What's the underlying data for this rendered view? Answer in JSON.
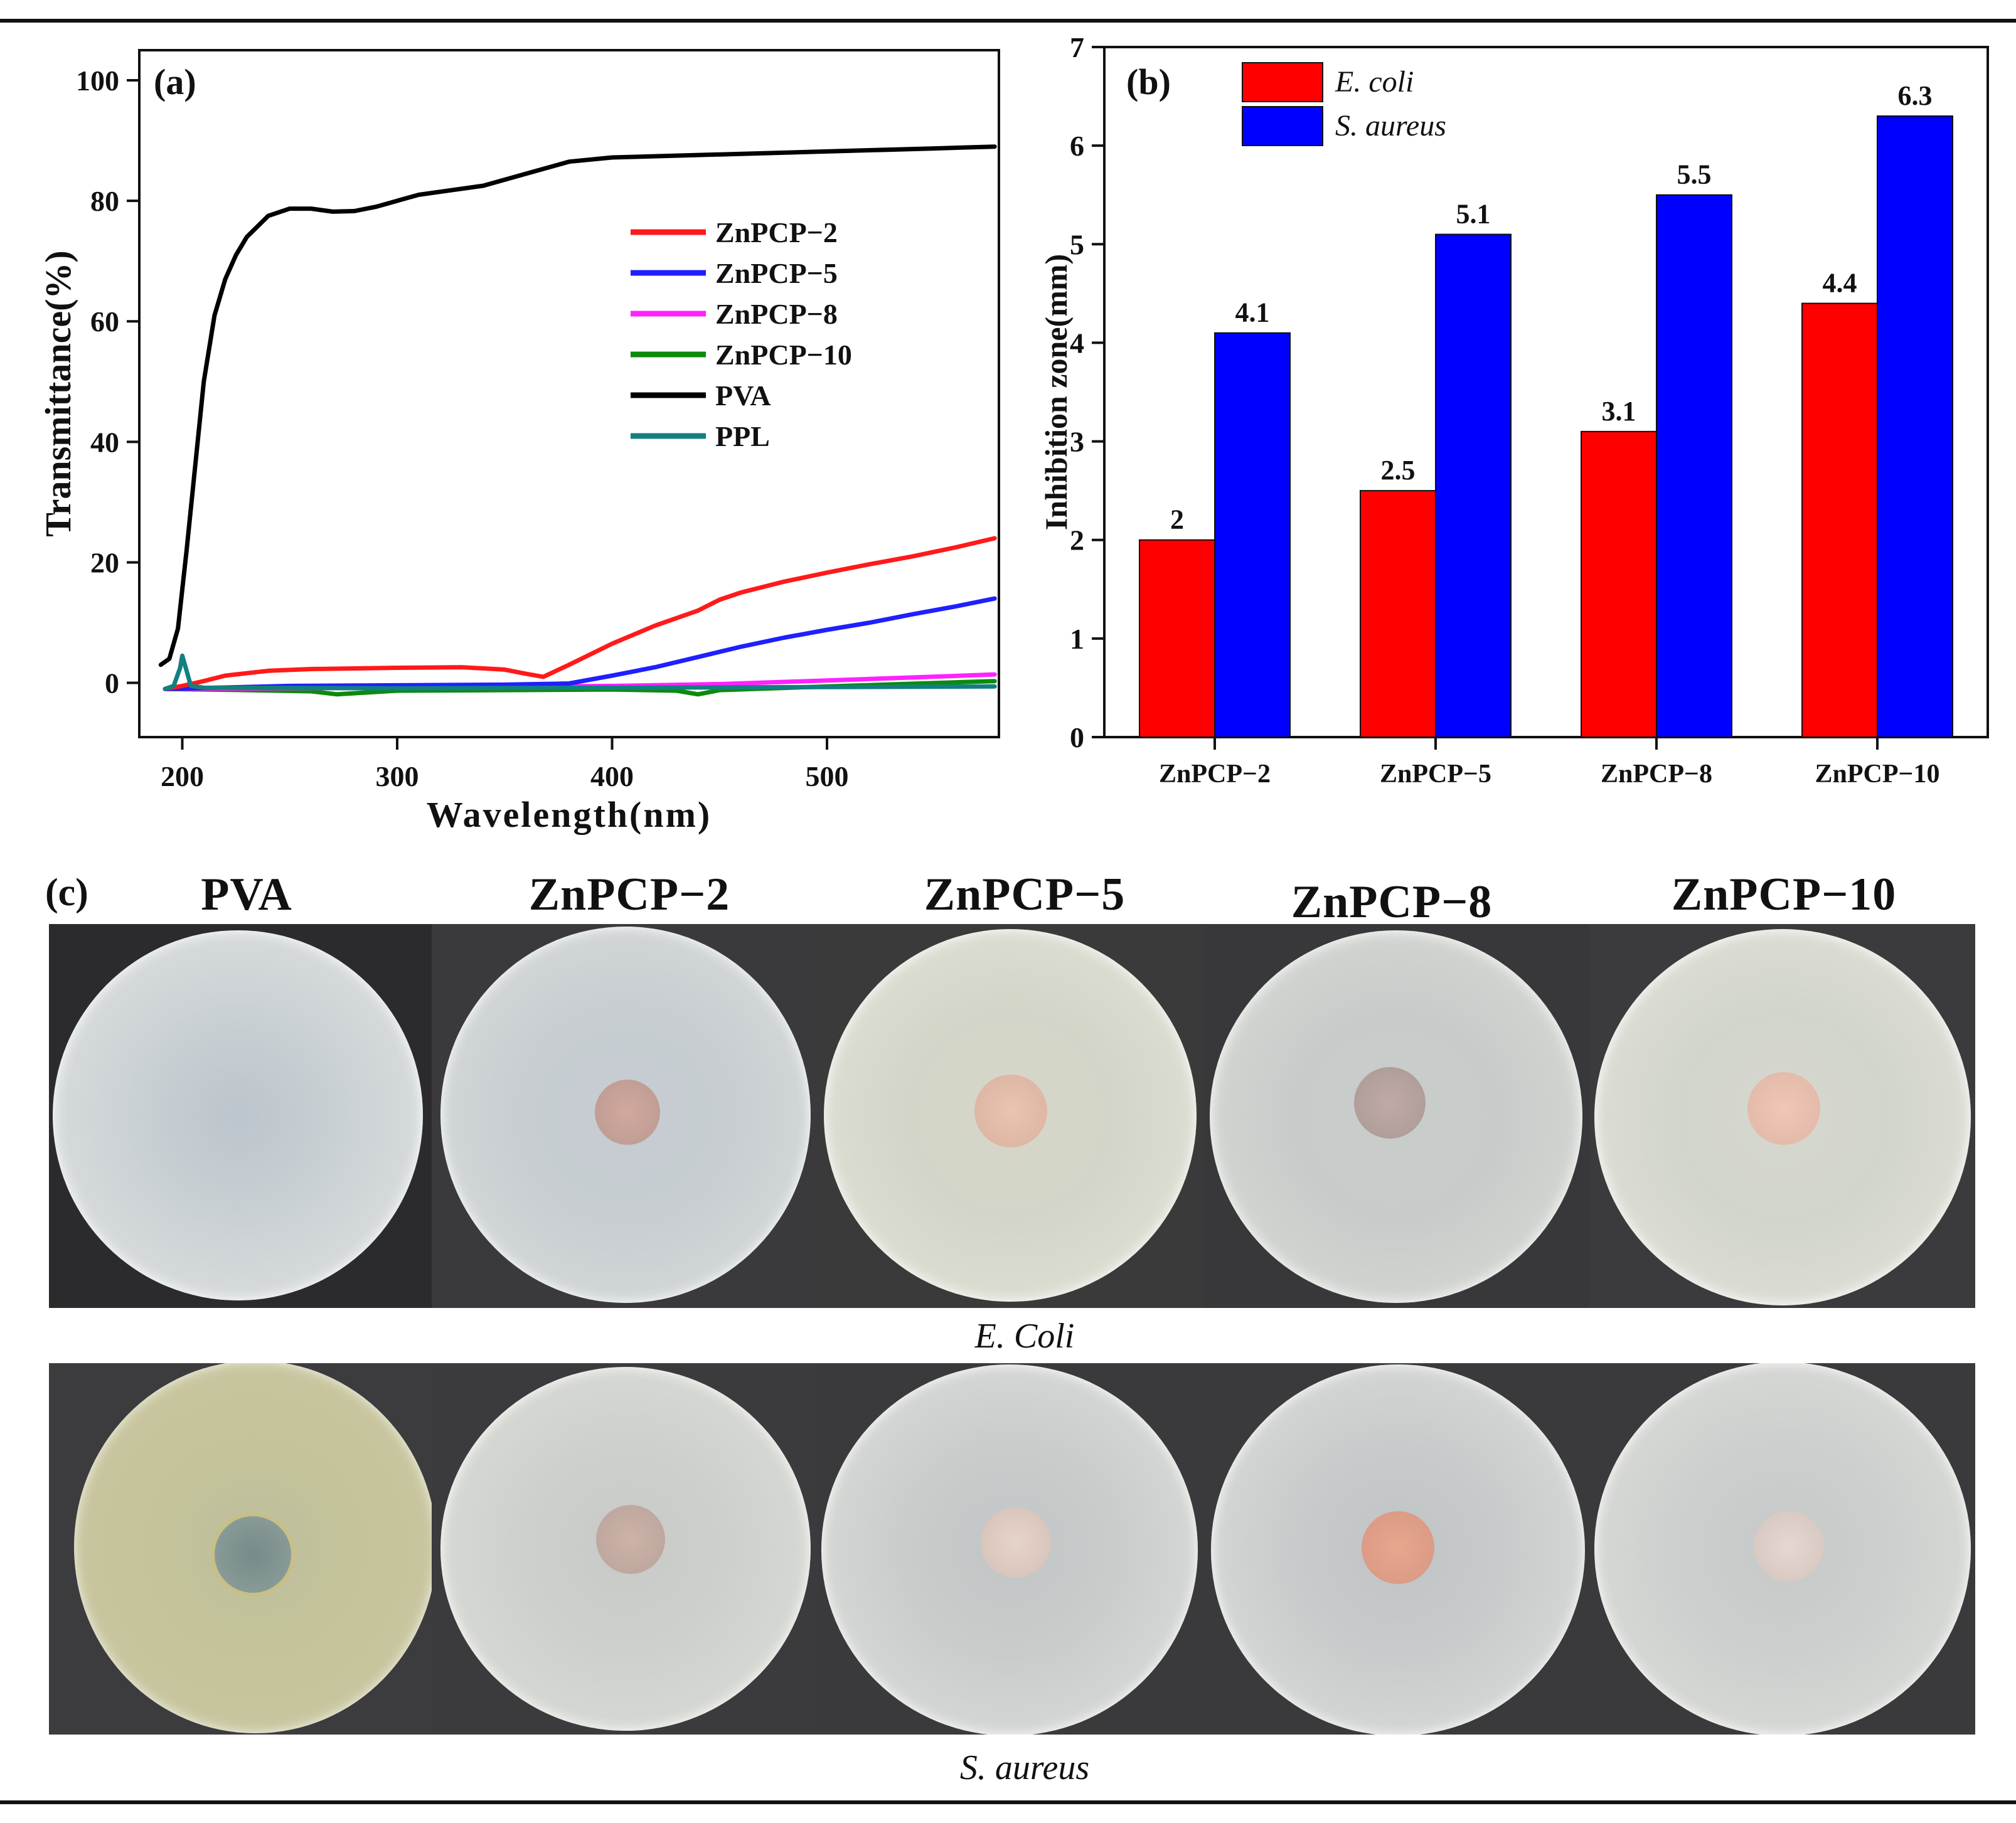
{
  "colors": {
    "zn2": "#ff1a1a",
    "zn5": "#1f1fff",
    "zn8": "#ff22ff",
    "zn10": "#0d8a0d",
    "pva": "#000000",
    "ppl": "#128080",
    "ecoli_bar": "#ff0000",
    "saureus_bar": "#0000ff"
  },
  "panel_c": {
    "label": "(c)",
    "plate_titles": [
      "PVA",
      "ZnPCP−2",
      "ZnPCP−5",
      "ZnPCP−8",
      "ZnPCP−10"
    ],
    "rows": [
      {
        "organism": "E. Coli"
      },
      {
        "organism": "S. aureus"
      }
    ]
  },
  "chart_data": [
    {
      "panel": "(a)",
      "type": "line",
      "xlabel": "Wavelength(nm)",
      "ylabel": "Transmittance(%)",
      "xlim": [
        180,
        580
      ],
      "ylim": [
        -9,
        105
      ],
      "xticks": [
        200,
        300,
        400,
        500
      ],
      "yticks": [
        0,
        20,
        40,
        60,
        80,
        100
      ],
      "legend_position": "center-right",
      "series": [
        {
          "name": "ZnPCP−2",
          "color_key": "zn2",
          "x": [
            192,
            200,
            210,
            220,
            240,
            260,
            300,
            330,
            350,
            360,
            368,
            380,
            400,
            420,
            440,
            450,
            460,
            480,
            500,
            520,
            540,
            560,
            578
          ],
          "y": [
            -1,
            -0.5,
            0.3,
            1.2,
            2.0,
            2.3,
            2.5,
            2.6,
            2.2,
            1.5,
            1.0,
            3.0,
            6.5,
            9.5,
            12.0,
            13.8,
            15.0,
            16.8,
            18.3,
            19.7,
            21.0,
            22.5,
            24.0
          ]
        },
        {
          "name": "ZnPCP−5",
          "color_key": "zn5",
          "x": [
            192,
            250,
            300,
            350,
            380,
            400,
            420,
            440,
            460,
            480,
            500,
            520,
            540,
            560,
            578
          ],
          "y": [
            -1,
            -0.5,
            -0.4,
            -0.3,
            -0.1,
            1.2,
            2.6,
            4.3,
            6.0,
            7.5,
            8.8,
            10.0,
            11.4,
            12.7,
            14.0
          ]
        },
        {
          "name": "ZnPCP−8",
          "color_key": "zn8",
          "x": [
            192,
            300,
            400,
            450,
            500,
            540,
            578
          ],
          "y": [
            -1,
            -0.8,
            -0.5,
            -0.2,
            0.4,
            0.9,
            1.4
          ]
        },
        {
          "name": "ZnPCP−10",
          "color_key": "zn10",
          "x": [
            192,
            230,
            260,
            272,
            300,
            350,
            400,
            430,
            440,
            450,
            500,
            578
          ],
          "y": [
            -1,
            -1.2,
            -1.4,
            -1.9,
            -1.3,
            -1.2,
            -1.1,
            -1.3,
            -1.9,
            -1.2,
            -0.6,
            0.3
          ]
        },
        {
          "name": "PVA",
          "color_key": "pva",
          "x": [
            190,
            194,
            198,
            202,
            206,
            210,
            215,
            220,
            225,
            230,
            240,
            250,
            260,
            270,
            280,
            290,
            300,
            310,
            320,
            340,
            360,
            380,
            400,
            450,
            500,
            550,
            578
          ],
          "y": [
            3,
            4,
            9,
            22,
            36,
            50,
            61,
            67,
            71,
            74,
            77.5,
            78.7,
            78.7,
            78.2,
            78.3,
            79.0,
            80.0,
            81.0,
            81.5,
            82.5,
            84.5,
            86.5,
            87.2,
            87.7,
            88.2,
            88.7,
            89.0
          ]
        },
        {
          "name": "PPL",
          "color_key": "ppl",
          "x": [
            192,
            196,
            199,
            200,
            202,
            204,
            210,
            300,
            400,
            500,
            578
          ],
          "y": [
            -1,
            -0.5,
            2.5,
            4.5,
            2.0,
            -0.5,
            -0.8,
            -0.9,
            -0.8,
            -0.7,
            -0.6
          ]
        }
      ]
    },
    {
      "panel": "(b)",
      "type": "bar",
      "ylabel": "Inhibition zone(mm)",
      "xlabel": "",
      "categories": [
        "ZnPCP−2",
        "ZnPCP−5",
        "ZnPCP−8",
        "ZnPCP−10"
      ],
      "ylim": [
        0,
        7
      ],
      "yticks": [
        0,
        1,
        2,
        3,
        4,
        5,
        6,
        7
      ],
      "legend_position": "top-left",
      "series": [
        {
          "name": "E. coli",
          "color_key": "ecoli_bar",
          "values": [
            2,
            2.5,
            3.1,
            4.4
          ],
          "labels": [
            "2",
            "2.5",
            "3.1",
            "4.4"
          ]
        },
        {
          "name": "S. aureus",
          "color_key": "saureus_bar",
          "values": [
            4.1,
            5.1,
            5.5,
            6.3
          ],
          "labels": [
            "4.1",
            "5.1",
            "5.5",
            "6.3"
          ]
        }
      ]
    }
  ]
}
